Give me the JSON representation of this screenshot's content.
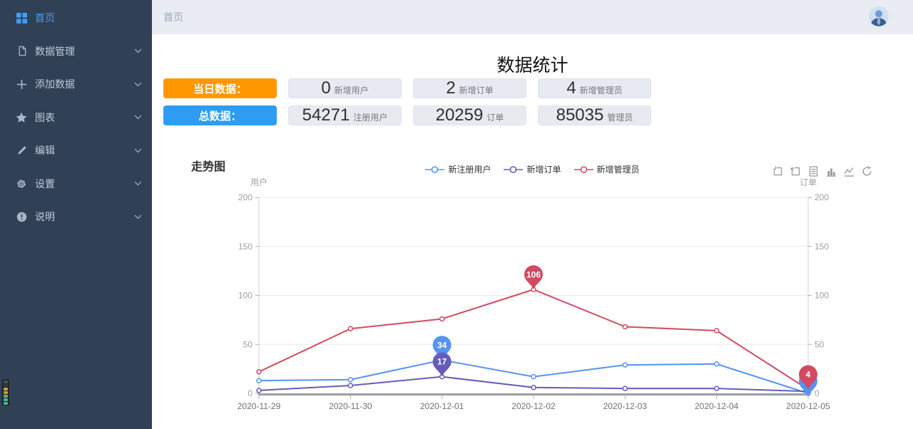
{
  "sidebar": {
    "items": [
      {
        "label": "首页",
        "icon": "grid-icon",
        "active": true
      },
      {
        "label": "数据管理",
        "icon": "document-icon",
        "active": false
      },
      {
        "label": "添加数据",
        "icon": "plus-icon",
        "active": false
      },
      {
        "label": "图表",
        "icon": "star-icon",
        "active": false
      },
      {
        "label": "编辑",
        "icon": "pencil-icon",
        "active": false
      },
      {
        "label": "设置",
        "icon": "gear-icon",
        "active": false
      },
      {
        "label": "说明",
        "icon": "info-icon",
        "active": false
      }
    ]
  },
  "topbar": {
    "breadcrumb": "首页"
  },
  "page": {
    "title": "数据统计"
  },
  "stats": {
    "rows": [
      {
        "label": "当日数据：",
        "color": "#ff9800",
        "items": [
          {
            "value": "0",
            "unit": "新增用户"
          },
          {
            "value": "2",
            "unit": "新增订单"
          },
          {
            "value": "4",
            "unit": "新增管理员"
          }
        ]
      },
      {
        "label": "总数据：",
        "color": "#2d9cf2",
        "items": [
          {
            "value": "54271",
            "unit": "注册用户"
          },
          {
            "value": "20259",
            "unit": "订单"
          },
          {
            "value": "85035",
            "unit": "管理员"
          }
        ]
      }
    ]
  },
  "chart_section": {
    "title": "走势图"
  },
  "chart_data": {
    "type": "line",
    "x": [
      "2020-11-29",
      "2020-11-30",
      "2020-12-01",
      "2020-12-02",
      "2020-12-03",
      "2020-12-04",
      "2020-12-05"
    ],
    "series": [
      {
        "name": "新注册用户",
        "color": "#5793f3",
        "values": [
          13,
          14,
          34,
          17,
          29,
          30,
          0
        ]
      },
      {
        "name": "新增订单",
        "color": "#675bba",
        "values": [
          3,
          8,
          17,
          6,
          5,
          5,
          2
        ]
      },
      {
        "name": "新增管理员",
        "color": "#d14a61",
        "values": [
          22,
          66,
          76,
          106,
          68,
          64,
          4
        ]
      }
    ],
    "y_left": {
      "name": "用户",
      "min": 0,
      "max": 200,
      "ticks": [
        0,
        50,
        100,
        150,
        200
      ]
    },
    "y_right": {
      "name": "订单",
      "min": 0,
      "max": 200,
      "ticks": [
        0,
        50,
        100,
        150,
        200
      ]
    },
    "mark_points": [
      {
        "series": 0,
        "index": 2,
        "label": "34",
        "dy": 0
      },
      {
        "series": 1,
        "index": 2,
        "label": "17",
        "dy": 0
      },
      {
        "series": 2,
        "index": 3,
        "label": "106",
        "dy": 0
      },
      {
        "series": 0,
        "index": 6,
        "label": "0",
        "dy": 4
      },
      {
        "series": 2,
        "index": 6,
        "label": "4",
        "dy": 0
      }
    ],
    "toolbox": [
      "zoom-select",
      "zoom-reset",
      "data-view",
      "bar-chart",
      "line-chart",
      "restore"
    ],
    "grid": true,
    "legend_position": "top"
  },
  "edge_widget": {
    "colors": [
      "#4a4f55",
      "#33383e",
      "#d2a144",
      "#b3a23f",
      "#6fae62",
      "#4fb08a",
      "#45b2a0"
    ]
  }
}
